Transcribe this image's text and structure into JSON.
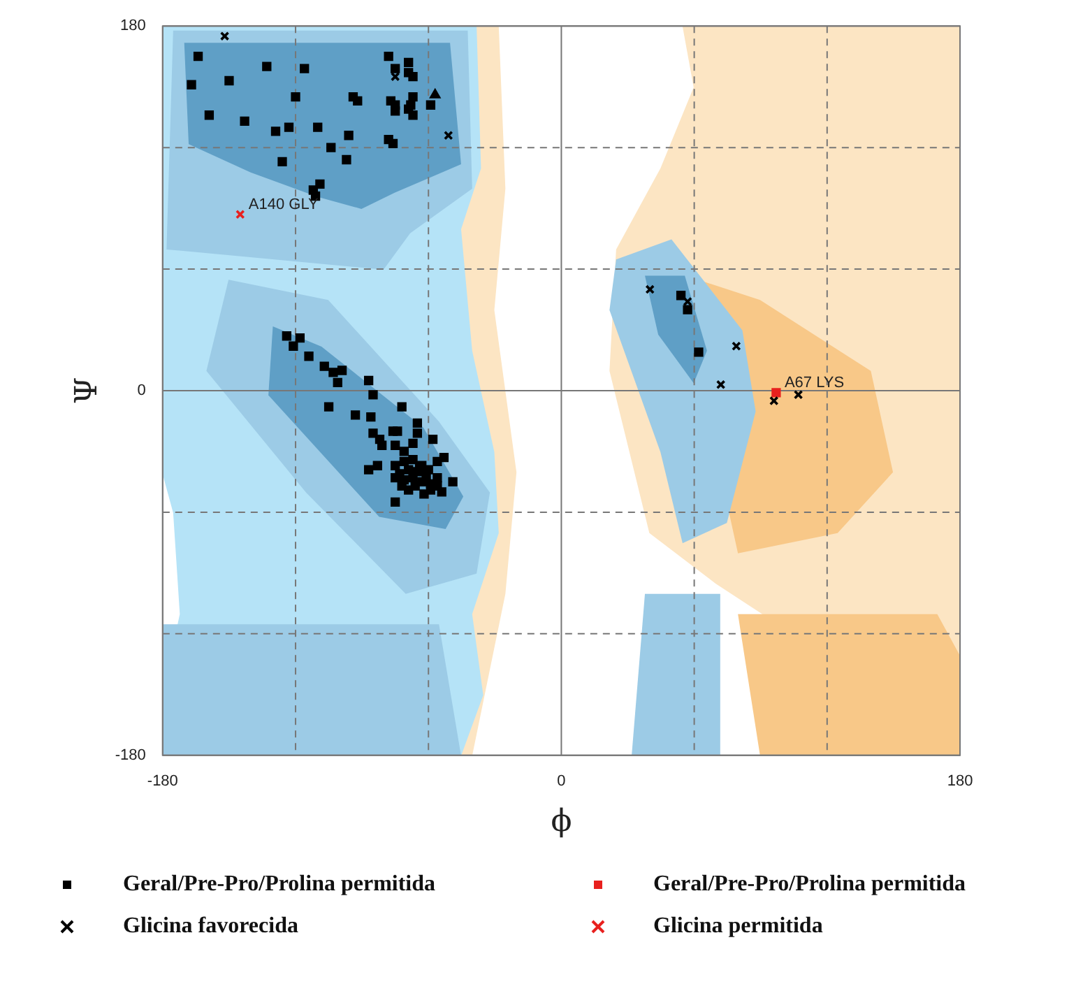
{
  "chart_data": {
    "type": "scatter",
    "xlabel": "ϕ",
    "ylabel": "Ψ",
    "xlim": [
      -180,
      180
    ],
    "ylim": [
      -180,
      180
    ],
    "xticks": [
      -180,
      {
        "value": -120,
        "label": null
      },
      {
        "value": -60,
        "label": null
      },
      0,
      {
        "value": 60,
        "label": null
      },
      {
        "value": 120,
        "label": null
      },
      180
    ],
    "yticks": [
      -180,
      {
        "value": -120,
        "label": null
      },
      {
        "value": -60,
        "label": null
      },
      0,
      {
        "value": 60,
        "label": null
      },
      {
        "value": 120,
        "label": null
      },
      180
    ],
    "grid": true,
    "legend": "bottom",
    "series": [
      {
        "name": "Geral/Pre-Pro/Prolina permitida",
        "color": "#000000",
        "marker": "square",
        "x": [
          -164,
          -167,
          -150,
          -159,
          -143,
          -133,
          -116,
          -120,
          -129,
          -123,
          -110,
          -126,
          -104,
          -97,
          -96,
          -94,
          -92,
          -109,
          -112,
          -111,
          -78,
          -75,
          -69,
          -69,
          -67,
          -77,
          -75,
          -75,
          -67,
          -68,
          -69,
          -67,
          -59,
          -78,
          -76,
          -124,
          -121,
          -118,
          -114,
          -107,
          -103,
          -99,
          -101,
          -87,
          -85,
          -105,
          -93,
          -86,
          -72,
          -65,
          -85,
          -76,
          -74,
          -65,
          -82,
          -58,
          -81,
          -75,
          -67,
          -71,
          -83,
          -87,
          -53,
          -56,
          -75,
          -71,
          -67,
          -63,
          -69,
          -65,
          -73,
          -61,
          -67,
          -71,
          -63,
          -75,
          -59,
          -56,
          -66,
          -69,
          -59,
          -54,
          -49,
          -75,
          -64,
          -60,
          -72,
          -56,
          -62,
          54,
          57,
          62
        ],
        "values": [
          165,
          151,
          153,
          136,
          133,
          160,
          159,
          145,
          128,
          130,
          130,
          113,
          120,
          114,
          126,
          145,
          143,
          102,
          99,
          96,
          165,
          159,
          162,
          157,
          155,
          143,
          141,
          138,
          145,
          141,
          139,
          136,
          141,
          124,
          122,
          27,
          22,
          26,
          17,
          12,
          9,
          10,
          4,
          5,
          -2,
          -8,
          -12,
          -13,
          -8,
          -16,
          -21,
          -20,
          -20,
          -21,
          -24,
          -24,
          -27,
          -27,
          -26,
          -30,
          -37,
          -39,
          -33,
          -35,
          -37,
          -35,
          -34,
          -37,
          -39,
          -40,
          -41,
          -42,
          -43,
          -44,
          -45,
          -43,
          -46,
          -47,
          -47,
          -49,
          -49,
          -50,
          -45,
          -55,
          -38,
          -39,
          -47,
          -43,
          -51,
          47,
          40,
          19
        ]
      },
      {
        "name": "Glicina favorecida",
        "color": "#000000",
        "marker": "cross",
        "x": [
          -152,
          -75,
          -51,
          40,
          57,
          79,
          72,
          96,
          107
        ],
        "values": [
          175,
          155,
          126,
          50,
          44,
          22,
          3,
          -5,
          -2
        ]
      },
      {
        "name": "Geral/Pre-Pro/Prolina permitida",
        "color": "#e8201e",
        "marker": "square",
        "x": [
          97
        ],
        "values": [
          -1
        ]
      },
      {
        "name": "Glicina permitida",
        "color": "#e8201e",
        "marker": "cross",
        "x": [
          -145
        ],
        "values": [
          87
        ]
      },
      {
        "color": "#000000",
        "marker": "triangle",
        "x": [
          -57
        ],
        "values": [
          146
        ]
      }
    ],
    "annotations": [
      {
        "text": "A140 GLY",
        "x": -145,
        "y": 87
      },
      {
        "text": "A67 LYS",
        "x": 97,
        "y": -1
      }
    ]
  }
}
